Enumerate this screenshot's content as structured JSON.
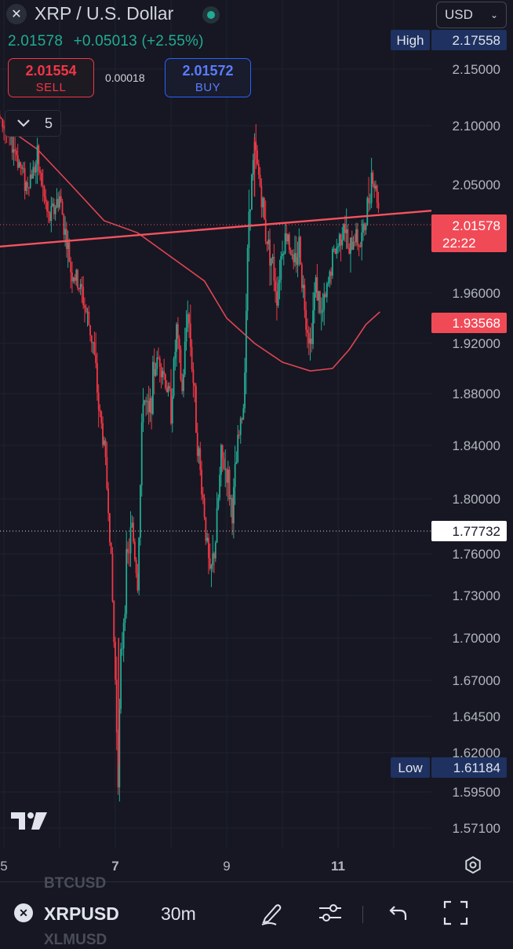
{
  "header": {
    "title": "XRP / U.S. Dollar",
    "last_price": "2.01578",
    "change": "+0.05013",
    "change_pct": "(+2.55%)",
    "currency": "USD",
    "sell_price": "2.01554",
    "sell_label": "SELL",
    "buy_price": "2.01572",
    "buy_label": "BUY",
    "spread": "0.00018",
    "collapse_count": "5"
  },
  "colors": {
    "background": "#161722",
    "up": "#22ab94",
    "down": "#f23645",
    "buy": "#2962ff",
    "badge_blue": "#1e3160"
  },
  "chart_data": {
    "type": "candlestick",
    "symbol": "XRPUSD",
    "timeframe": "30m",
    "x_ticks": [
      "5",
      "7",
      "9",
      "11"
    ],
    "y_ticks": [
      "2.15000",
      "2.10000",
      "2.05000",
      "1.96000",
      "1.92000",
      "1.88000",
      "1.84000",
      "1.80000",
      "1.76000",
      "1.73000",
      "1.70000",
      "1.67000",
      "1.64500",
      "1.62000",
      "1.59500",
      "1.57100"
    ],
    "ylim": [
      1.55,
      2.19
    ],
    "high": {
      "label": "High",
      "value": "2.17558"
    },
    "low": {
      "label": "Low",
      "value": "1.61184"
    },
    "current_price": {
      "value": "2.01578",
      "countdown": "22:22"
    },
    "ma_value": "1.93568",
    "crosshair_price": "1.77732",
    "trendline": {
      "from": [
        4.0,
        1.995
      ],
      "to": [
        11.8,
        2.025
      ]
    },
    "price_path": [
      [
        4.0,
        2.12
      ],
      [
        4.2,
        2.13
      ],
      [
        4.4,
        2.11
      ],
      [
        4.6,
        2.12
      ],
      [
        4.8,
        2.11
      ],
      [
        5.0,
        2.1
      ],
      [
        5.2,
        2.08
      ],
      [
        5.4,
        2.05
      ],
      [
        5.6,
        2.07
      ],
      [
        5.8,
        2.02
      ],
      [
        6.0,
        2.04
      ],
      [
        6.2,
        1.98
      ],
      [
        6.4,
        1.96
      ],
      [
        6.6,
        1.92
      ],
      [
        6.7,
        1.87
      ],
      [
        6.8,
        1.84
      ],
      [
        6.9,
        1.78
      ],
      [
        7.0,
        1.67
      ],
      [
        7.05,
        1.61
      ],
      [
        7.1,
        1.68
      ],
      [
        7.2,
        1.75
      ],
      [
        7.3,
        1.78
      ],
      [
        7.4,
        1.74
      ],
      [
        7.5,
        1.88
      ],
      [
        7.6,
        1.86
      ],
      [
        7.7,
        1.9
      ],
      [
        7.8,
        1.91
      ],
      [
        7.9,
        1.89
      ],
      [
        8.0,
        1.87
      ],
      [
        8.1,
        1.93
      ],
      [
        8.2,
        1.88
      ],
      [
        8.3,
        1.95
      ],
      [
        8.4,
        1.89
      ],
      [
        8.5,
        1.83
      ],
      [
        8.6,
        1.79
      ],
      [
        8.7,
        1.74
      ],
      [
        8.8,
        1.77
      ],
      [
        8.9,
        1.83
      ],
      [
        9.0,
        1.82
      ],
      [
        9.1,
        1.79
      ],
      [
        9.2,
        1.84
      ],
      [
        9.3,
        1.87
      ],
      [
        9.4,
        2.03
      ],
      [
        9.5,
        2.08
      ],
      [
        9.6,
        2.05
      ],
      [
        9.7,
        2.01
      ],
      [
        9.8,
        1.99
      ],
      [
        9.9,
        1.96
      ],
      [
        10.0,
        2.0
      ],
      [
        10.1,
        2.01
      ],
      [
        10.2,
        1.98
      ],
      [
        10.3,
        2.0
      ],
      [
        10.4,
        1.95
      ],
      [
        10.5,
        1.92
      ],
      [
        10.6,
        1.97
      ],
      [
        10.7,
        1.94
      ],
      [
        10.8,
        1.96
      ],
      [
        10.9,
        1.99
      ],
      [
        11.0,
        2.0
      ],
      [
        11.1,
        2.02
      ],
      [
        11.2,
        1.99
      ],
      [
        11.3,
        2.01
      ],
      [
        11.4,
        2.0
      ],
      [
        11.5,
        2.02
      ],
      [
        11.6,
        2.06
      ],
      [
        11.7,
        2.04
      ],
      [
        11.75,
        2.02
      ]
    ],
    "ma_path": [
      [
        5.0,
        2.1
      ],
      [
        5.6,
        2.08
      ],
      [
        6.2,
        2.05
      ],
      [
        6.8,
        2.02
      ],
      [
        7.4,
        2.01
      ],
      [
        8.0,
        1.99
      ],
      [
        8.6,
        1.97
      ],
      [
        9.0,
        1.94
      ],
      [
        9.5,
        1.92
      ],
      [
        10.0,
        1.905
      ],
      [
        10.5,
        1.898
      ],
      [
        10.9,
        1.9
      ],
      [
        11.2,
        1.915
      ],
      [
        11.5,
        1.935
      ],
      [
        11.75,
        1.945
      ]
    ]
  },
  "bottom_toolbar": {
    "symbol": "XRPUSD",
    "timeframe": "30m",
    "ghost_above": "BTCUSD",
    "ghost_below": "XLMUSD",
    "icons": [
      "draw-icon",
      "indicators-icon",
      "undo-icon",
      "fullscreen-icon"
    ]
  }
}
